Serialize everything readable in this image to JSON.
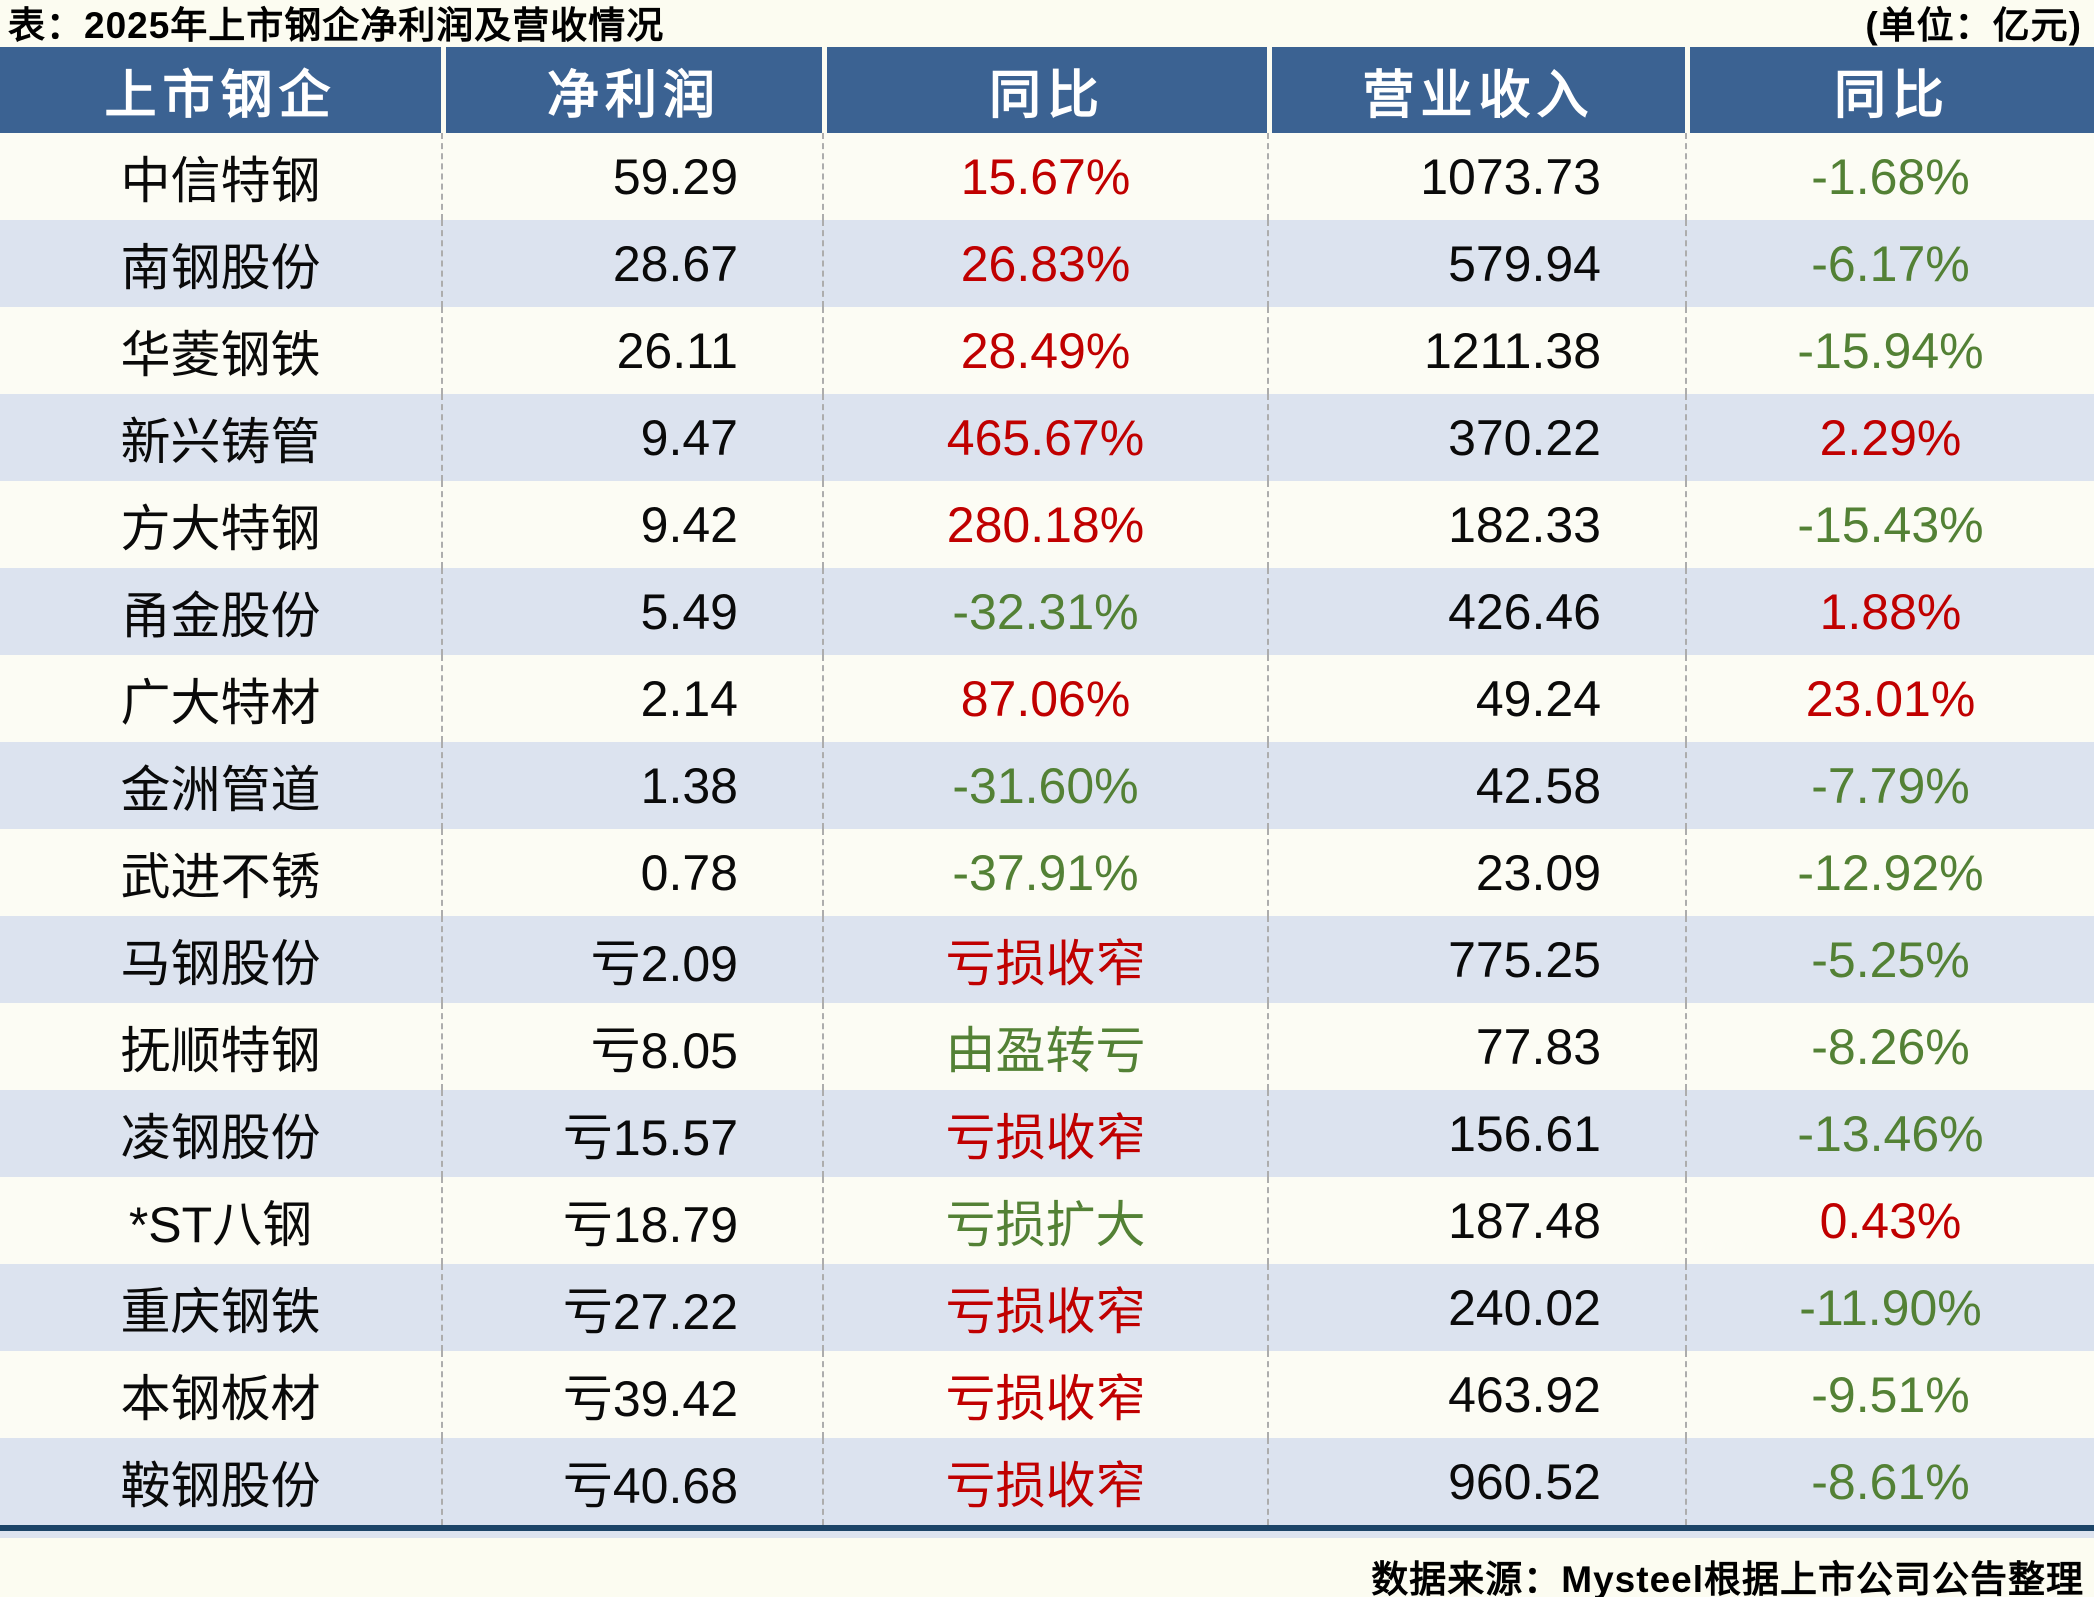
{
  "title": "表：2025年上市钢企净利润及营收情况",
  "unit_label": "(单位：亿元)",
  "chart_data": {
    "type": "table",
    "title": "2025年上市钢企净利润及营收情况",
    "unit": "亿元",
    "columns": [
      "上市钢企",
      "净利润",
      "同比",
      "营业收入",
      "同比"
    ],
    "rows": [
      {
        "company": "中信特钢",
        "net_profit": "59.29",
        "profit_yoy": "15.67%",
        "profit_yoy_color": "red",
        "revenue": "1073.73",
        "revenue_yoy": "-1.68%",
        "revenue_yoy_color": "green"
      },
      {
        "company": "南钢股份",
        "net_profit": "28.67",
        "profit_yoy": "26.83%",
        "profit_yoy_color": "red",
        "revenue": "579.94",
        "revenue_yoy": "-6.17%",
        "revenue_yoy_color": "green"
      },
      {
        "company": "华菱钢铁",
        "net_profit": "26.11",
        "profit_yoy": "28.49%",
        "profit_yoy_color": "red",
        "revenue": "1211.38",
        "revenue_yoy": "-15.94%",
        "revenue_yoy_color": "green"
      },
      {
        "company": "新兴铸管",
        "net_profit": "9.47",
        "profit_yoy": "465.67%",
        "profit_yoy_color": "red",
        "revenue": "370.22",
        "revenue_yoy": "2.29%",
        "revenue_yoy_color": "red"
      },
      {
        "company": "方大特钢",
        "net_profit": "9.42",
        "profit_yoy": "280.18%",
        "profit_yoy_color": "red",
        "revenue": "182.33",
        "revenue_yoy": "-15.43%",
        "revenue_yoy_color": "green"
      },
      {
        "company": "甬金股份",
        "net_profit": "5.49",
        "profit_yoy": "-32.31%",
        "profit_yoy_color": "green",
        "revenue": "426.46",
        "revenue_yoy": "1.88%",
        "revenue_yoy_color": "red"
      },
      {
        "company": "广大特材",
        "net_profit": "2.14",
        "profit_yoy": "87.06%",
        "profit_yoy_color": "red",
        "revenue": "49.24",
        "revenue_yoy": "23.01%",
        "revenue_yoy_color": "red"
      },
      {
        "company": "金洲管道",
        "net_profit": "1.38",
        "profit_yoy": "-31.60%",
        "profit_yoy_color": "green",
        "revenue": "42.58",
        "revenue_yoy": "-7.79%",
        "revenue_yoy_color": "green"
      },
      {
        "company": "武进不锈",
        "net_profit": "0.78",
        "profit_yoy": "-37.91%",
        "profit_yoy_color": "green",
        "revenue": "23.09",
        "revenue_yoy": "-12.92%",
        "revenue_yoy_color": "green"
      },
      {
        "company": "马钢股份",
        "net_profit": "亏2.09",
        "profit_yoy": "亏损收窄",
        "profit_yoy_color": "red",
        "revenue": "775.25",
        "revenue_yoy": "-5.25%",
        "revenue_yoy_color": "green"
      },
      {
        "company": "抚顺特钢",
        "net_profit": "亏8.05",
        "profit_yoy": "由盈转亏",
        "profit_yoy_color": "green",
        "revenue": "77.83",
        "revenue_yoy": "-8.26%",
        "revenue_yoy_color": "green"
      },
      {
        "company": "凌钢股份",
        "net_profit": "亏15.57",
        "profit_yoy": "亏损收窄",
        "profit_yoy_color": "red",
        "revenue": "156.61",
        "revenue_yoy": "-13.46%",
        "revenue_yoy_color": "green"
      },
      {
        "company": "*ST八钢",
        "net_profit": "亏18.79",
        "profit_yoy": "亏损扩大",
        "profit_yoy_color": "green",
        "revenue": "187.48",
        "revenue_yoy": "0.43%",
        "revenue_yoy_color": "red"
      },
      {
        "company": "重庆钢铁",
        "net_profit": "亏27.22",
        "profit_yoy": "亏损收窄",
        "profit_yoy_color": "red",
        "revenue": "240.02",
        "revenue_yoy": "-11.90%",
        "revenue_yoy_color": "green"
      },
      {
        "company": "本钢板材",
        "net_profit": "亏39.42",
        "profit_yoy": "亏损收窄",
        "profit_yoy_color": "red",
        "revenue": "463.92",
        "revenue_yoy": "-9.51%",
        "revenue_yoy_color": "green"
      },
      {
        "company": "鞍钢股份",
        "net_profit": "亏40.68",
        "profit_yoy": "亏损收窄",
        "profit_yoy_color": "red",
        "revenue": "960.52",
        "revenue_yoy": "-8.61%",
        "revenue_yoy_color": "green"
      }
    ]
  },
  "footer": {
    "source": "数据来源：Mysteel根据上市公司公告整理"
  },
  "colors": {
    "header_bg": "#3B6292",
    "alt_row_bg": "#DCE3EF",
    "increase_red": "#C00000",
    "decrease_green": "#538135",
    "bottom_border_navy": "#1C4467",
    "page_bg": "#FCFCF1"
  }
}
